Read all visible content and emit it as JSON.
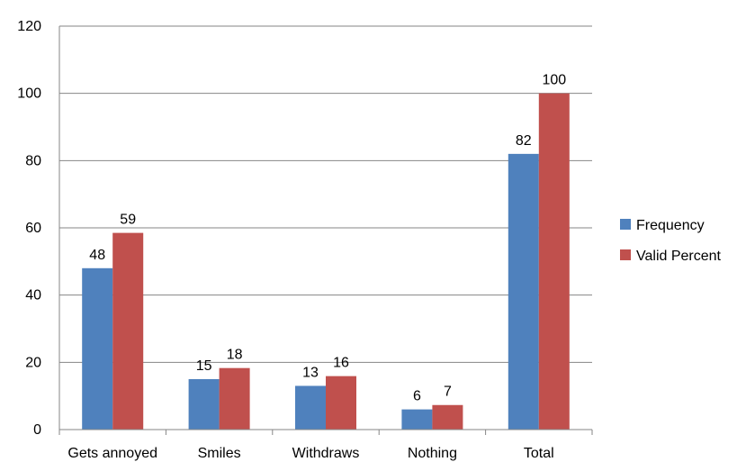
{
  "chart_data": {
    "type": "bar",
    "categories": [
      "Gets annoyed",
      "Smiles",
      "Withdraws",
      "Nothing",
      "Total"
    ],
    "series": [
      {
        "name": "Frequency",
        "color": "#4F81BD",
        "values": [
          48,
          15,
          13,
          6,
          82
        ]
      },
      {
        "name": "Valid Percent",
        "color": "#C0504D",
        "values": [
          58.5,
          18.3,
          15.9,
          7.3,
          100
        ]
      }
    ],
    "data_labels": [
      [
        "48",
        "15",
        "13",
        "6",
        "82"
      ],
      [
        "59",
        "18",
        "16",
        "7",
        "100"
      ]
    ],
    "yticks": [
      "0",
      "20",
      "40",
      "60",
      "80",
      "100",
      "120"
    ],
    "ylim": [
      0,
      120
    ],
    "grid": true,
    "legend_position": "right"
  }
}
